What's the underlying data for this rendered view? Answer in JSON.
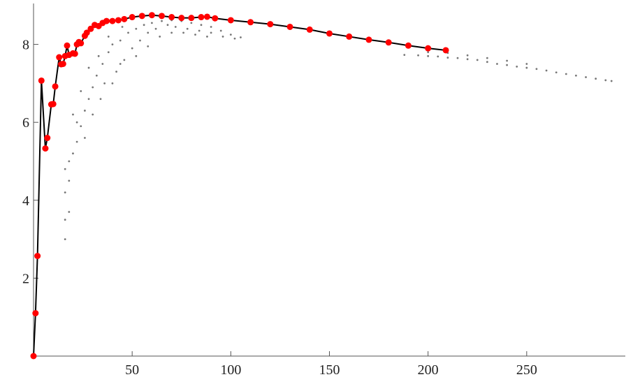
{
  "chart_data": {
    "type": "scatter-line",
    "xlim": [
      0,
      300
    ],
    "ylim": [
      0,
      9.05
    ],
    "xticks": [
      50,
      100,
      150,
      200,
      250
    ],
    "yticks": [
      2,
      4,
      6,
      8
    ],
    "series": [
      {
        "color": "#777777",
        "mode": "dots",
        "x": [
          188,
          195,
          200,
          205,
          210,
          215,
          220,
          225,
          230,
          235,
          240,
          245,
          250,
          255,
          260,
          265,
          270,
          275,
          280,
          285,
          290,
          293,
          200,
          210,
          220,
          230,
          240,
          250,
          16,
          16,
          18,
          16,
          18,
          16,
          20,
          22,
          18,
          24,
          20,
          26,
          28,
          24,
          30,
          32,
          28,
          35,
          38,
          33,
          40,
          44,
          38,
          48,
          52,
          45,
          56,
          60,
          65,
          70,
          75,
          80,
          85,
          90,
          95,
          100,
          105,
          22,
          26,
          30,
          34,
          36,
          42,
          46,
          50,
          54,
          58,
          62,
          68,
          72,
          78,
          84,
          90,
          96,
          102,
          40,
          44,
          52,
          58,
          64,
          70,
          76,
          82,
          88
        ],
        "values": [
          7.73,
          7.72,
          7.7,
          7.69,
          7.66,
          7.65,
          7.62,
          7.6,
          7.55,
          7.5,
          7.47,
          7.43,
          7.4,
          7.37,
          7.33,
          7.28,
          7.24,
          7.2,
          7.16,
          7.12,
          7.08,
          7.06,
          7.8,
          7.78,
          7.72,
          7.65,
          7.58,
          7.5,
          3.0,
          3.5,
          3.7,
          4.2,
          4.5,
          4.8,
          5.2,
          5.5,
          5.0,
          5.9,
          6.2,
          6.3,
          6.6,
          6.8,
          6.9,
          7.2,
          7.4,
          7.5,
          7.8,
          7.7,
          8.0,
          8.1,
          8.2,
          8.3,
          8.4,
          8.45,
          8.5,
          8.55,
          8.6,
          8.62,
          8.6,
          8.55,
          8.5,
          8.45,
          8.35,
          8.25,
          8.18,
          6.0,
          5.6,
          6.2,
          6.6,
          7.0,
          7.3,
          7.6,
          7.9,
          8.1,
          8.3,
          8.4,
          8.5,
          8.45,
          8.4,
          8.35,
          8.3,
          8.2,
          8.15,
          7.0,
          7.5,
          7.7,
          7.95,
          8.2,
          8.3,
          8.3,
          8.25,
          8.2
        ]
      },
      {
        "color": "#ff0000",
        "line_color": "#000000",
        "mode": "line-points",
        "x": [
          0,
          1,
          2,
          4,
          6,
          7,
          9,
          10,
          11,
          13,
          14,
          15,
          16,
          17,
          18,
          20,
          21,
          22,
          23,
          24,
          26,
          27,
          29,
          31,
          33,
          35,
          37,
          40,
          43,
          46,
          50,
          55,
          60,
          65,
          70,
          75,
          80,
          85,
          88,
          92,
          100,
          110,
          120,
          130,
          140,
          150,
          160,
          170,
          180,
          190,
          200,
          209
        ],
        "values": [
          0,
          1.1,
          2.57,
          7.07,
          5.33,
          5.6,
          6.46,
          6.47,
          6.92,
          7.67,
          7.49,
          7.5,
          7.7,
          7.97,
          7.73,
          7.77,
          7.76,
          8.0,
          8.06,
          8.03,
          8.22,
          8.3,
          8.4,
          8.5,
          8.47,
          8.55,
          8.6,
          8.6,
          8.62,
          8.65,
          8.7,
          8.73,
          8.75,
          8.73,
          8.7,
          8.68,
          8.68,
          8.7,
          8.71,
          8.67,
          8.62,
          8.57,
          8.52,
          8.45,
          8.38,
          8.28,
          8.2,
          8.12,
          8.05,
          7.97,
          7.9,
          7.85
        ]
      }
    ]
  }
}
